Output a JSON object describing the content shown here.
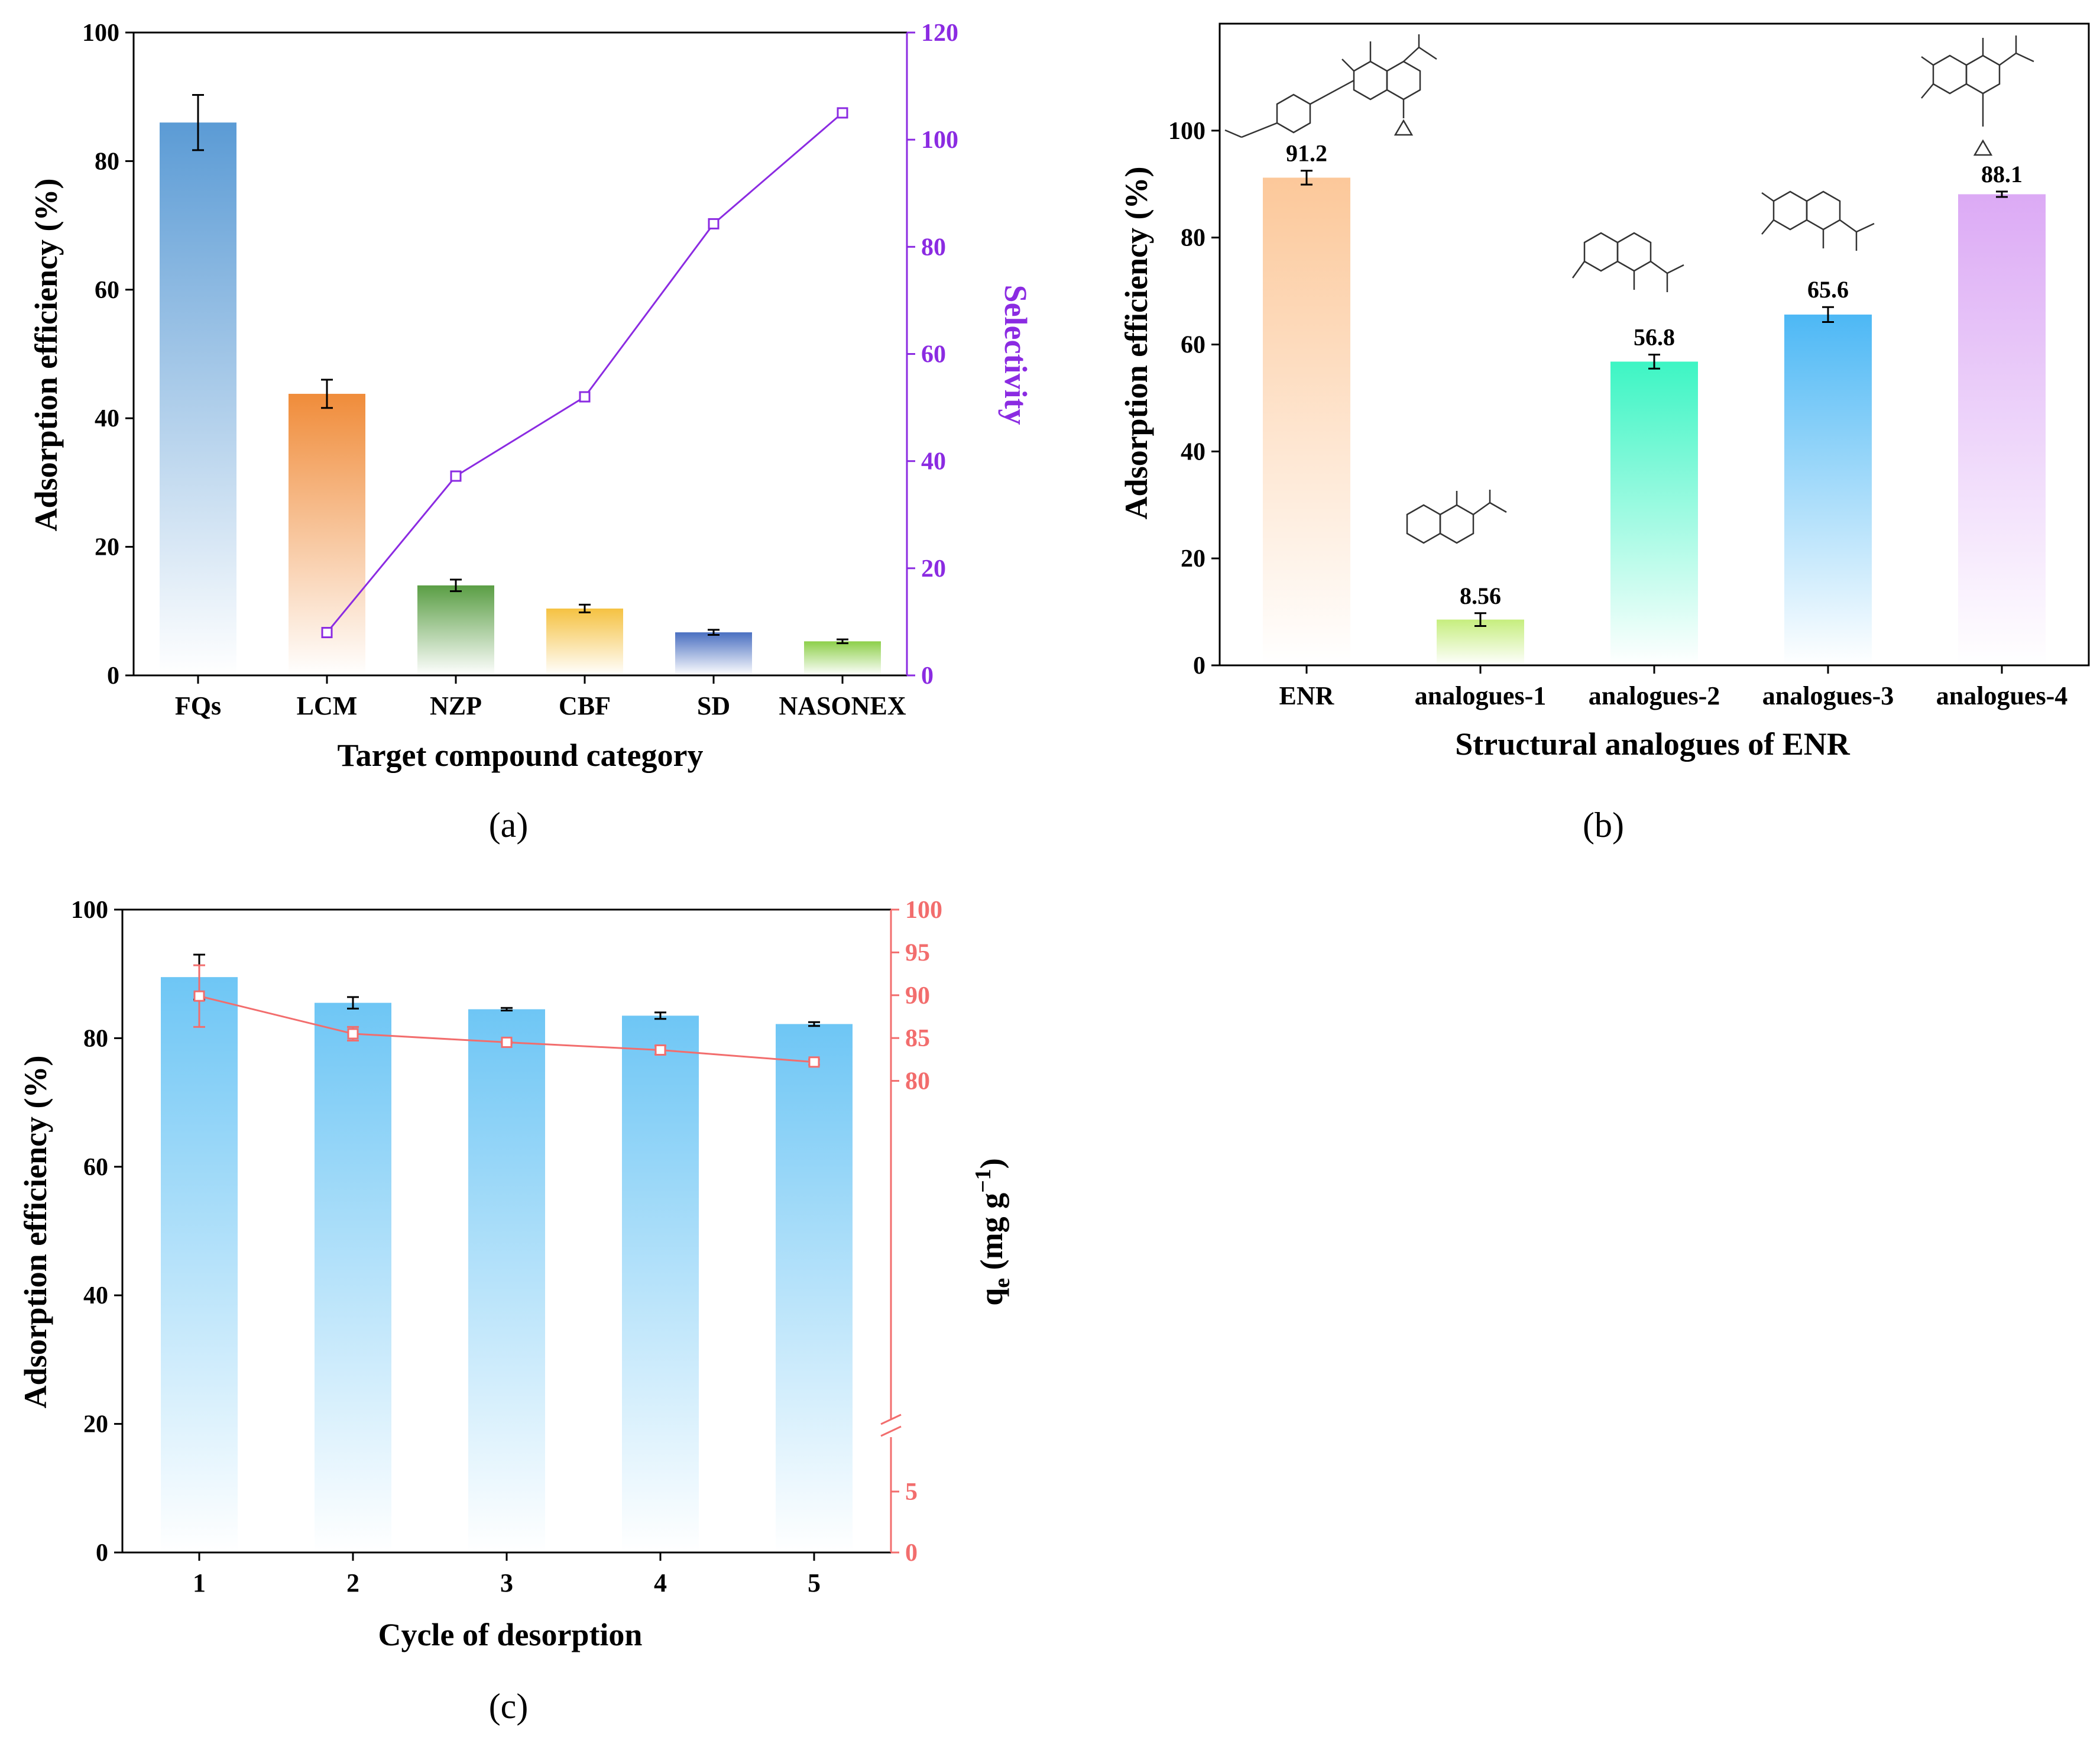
{
  "chart_data": [
    {
      "panel": "(a)",
      "type": "bar",
      "xlabel": "Target compound category",
      "ylabel": "Adsorption efficiency (%)",
      "y2label": "Selectivity",
      "ylim": [
        0,
        100
      ],
      "y2lim": [
        0,
        120
      ],
      "yticks": [
        "0",
        "20",
        "40",
        "60",
        "80",
        "100"
      ],
      "y2ticks": [
        "0",
        "20",
        "40",
        "60",
        "80",
        "100",
        "120"
      ],
      "categories": [
        "FQs",
        "LCM",
        "NZP",
        "CBF",
        "SD",
        "NASONEX"
      ],
      "values": [
        86,
        43.8,
        14,
        10.4,
        6.7,
        5.3
      ],
      "errors": [
        4.3,
        2.2,
        0.9,
        0.6,
        0.4,
        0.3
      ],
      "colors": [
        "#5b9bd5",
        "#f08c3a",
        "#5a9e44",
        "#f5c242",
        "#4a6fc1",
        "#8dcf4a"
      ],
      "selectivity": {
        "categories": [
          "LCM",
          "NZP",
          "CBF",
          "SD",
          "NASONEX"
        ],
        "values": [
          8,
          37.2,
          52,
          84.3,
          105
        ],
        "color": "#8b2be2"
      }
    },
    {
      "panel": "(b)",
      "type": "bar",
      "xlabel": "Structural analogues of ENR",
      "ylabel": "Adsorption efficiency (%)",
      "ylim": [
        0,
        120
      ],
      "yticks": [
        "0",
        "20",
        "40",
        "60",
        "80",
        "100"
      ],
      "categories": [
        "ENR",
        "analogues-1",
        "analogues-2",
        "analogues-3",
        "analogues-4"
      ],
      "values": [
        91.2,
        8.56,
        56.8,
        65.6,
        88.1
      ],
      "labels": [
        "91.2",
        "8.56",
        "56.8",
        "65.6",
        "88.1"
      ],
      "errors": [
        1.3,
        1.2,
        1.3,
        1.4,
        0.5
      ],
      "colors": [
        "#fcc89a",
        "#c6ee7e",
        "#3df5c4",
        "#4db8f5",
        "#dcaaf5"
      ]
    },
    {
      "panel": "(c)",
      "type": "bar",
      "xlabel": "Cycle of desorption",
      "ylabel": "Adsorption efficiency (%)",
      "y2label_main": "q",
      "y2label_sub": "e",
      "y2label_rest": " (mg g",
      "y2label_sup": "−1",
      "y2label_end": ")",
      "ylim": [
        0,
        100
      ],
      "yticks": [
        "0",
        "20",
        "40",
        "60",
        "80",
        "100"
      ],
      "y2ticks_upper": [
        "80",
        "85",
        "90",
        "95",
        "100"
      ],
      "y2ticks_lower": [
        "0",
        "5"
      ],
      "categories": [
        "1",
        "2",
        "3",
        "4",
        "5"
      ],
      "values": [
        89.5,
        85.5,
        84.5,
        83.5,
        82.2
      ],
      "errors": [
        3.5,
        0.9,
        0.2,
        0.5,
        0.3
      ],
      "bar_color": "#6ec6f5",
      "qe": {
        "values": [
          89.9,
          85.5,
          84.5,
          83.6,
          82.2
        ],
        "errors": [
          3.6,
          0.8,
          0.1,
          0.5,
          0.3
        ],
        "color": "#f26d6d"
      }
    }
  ]
}
